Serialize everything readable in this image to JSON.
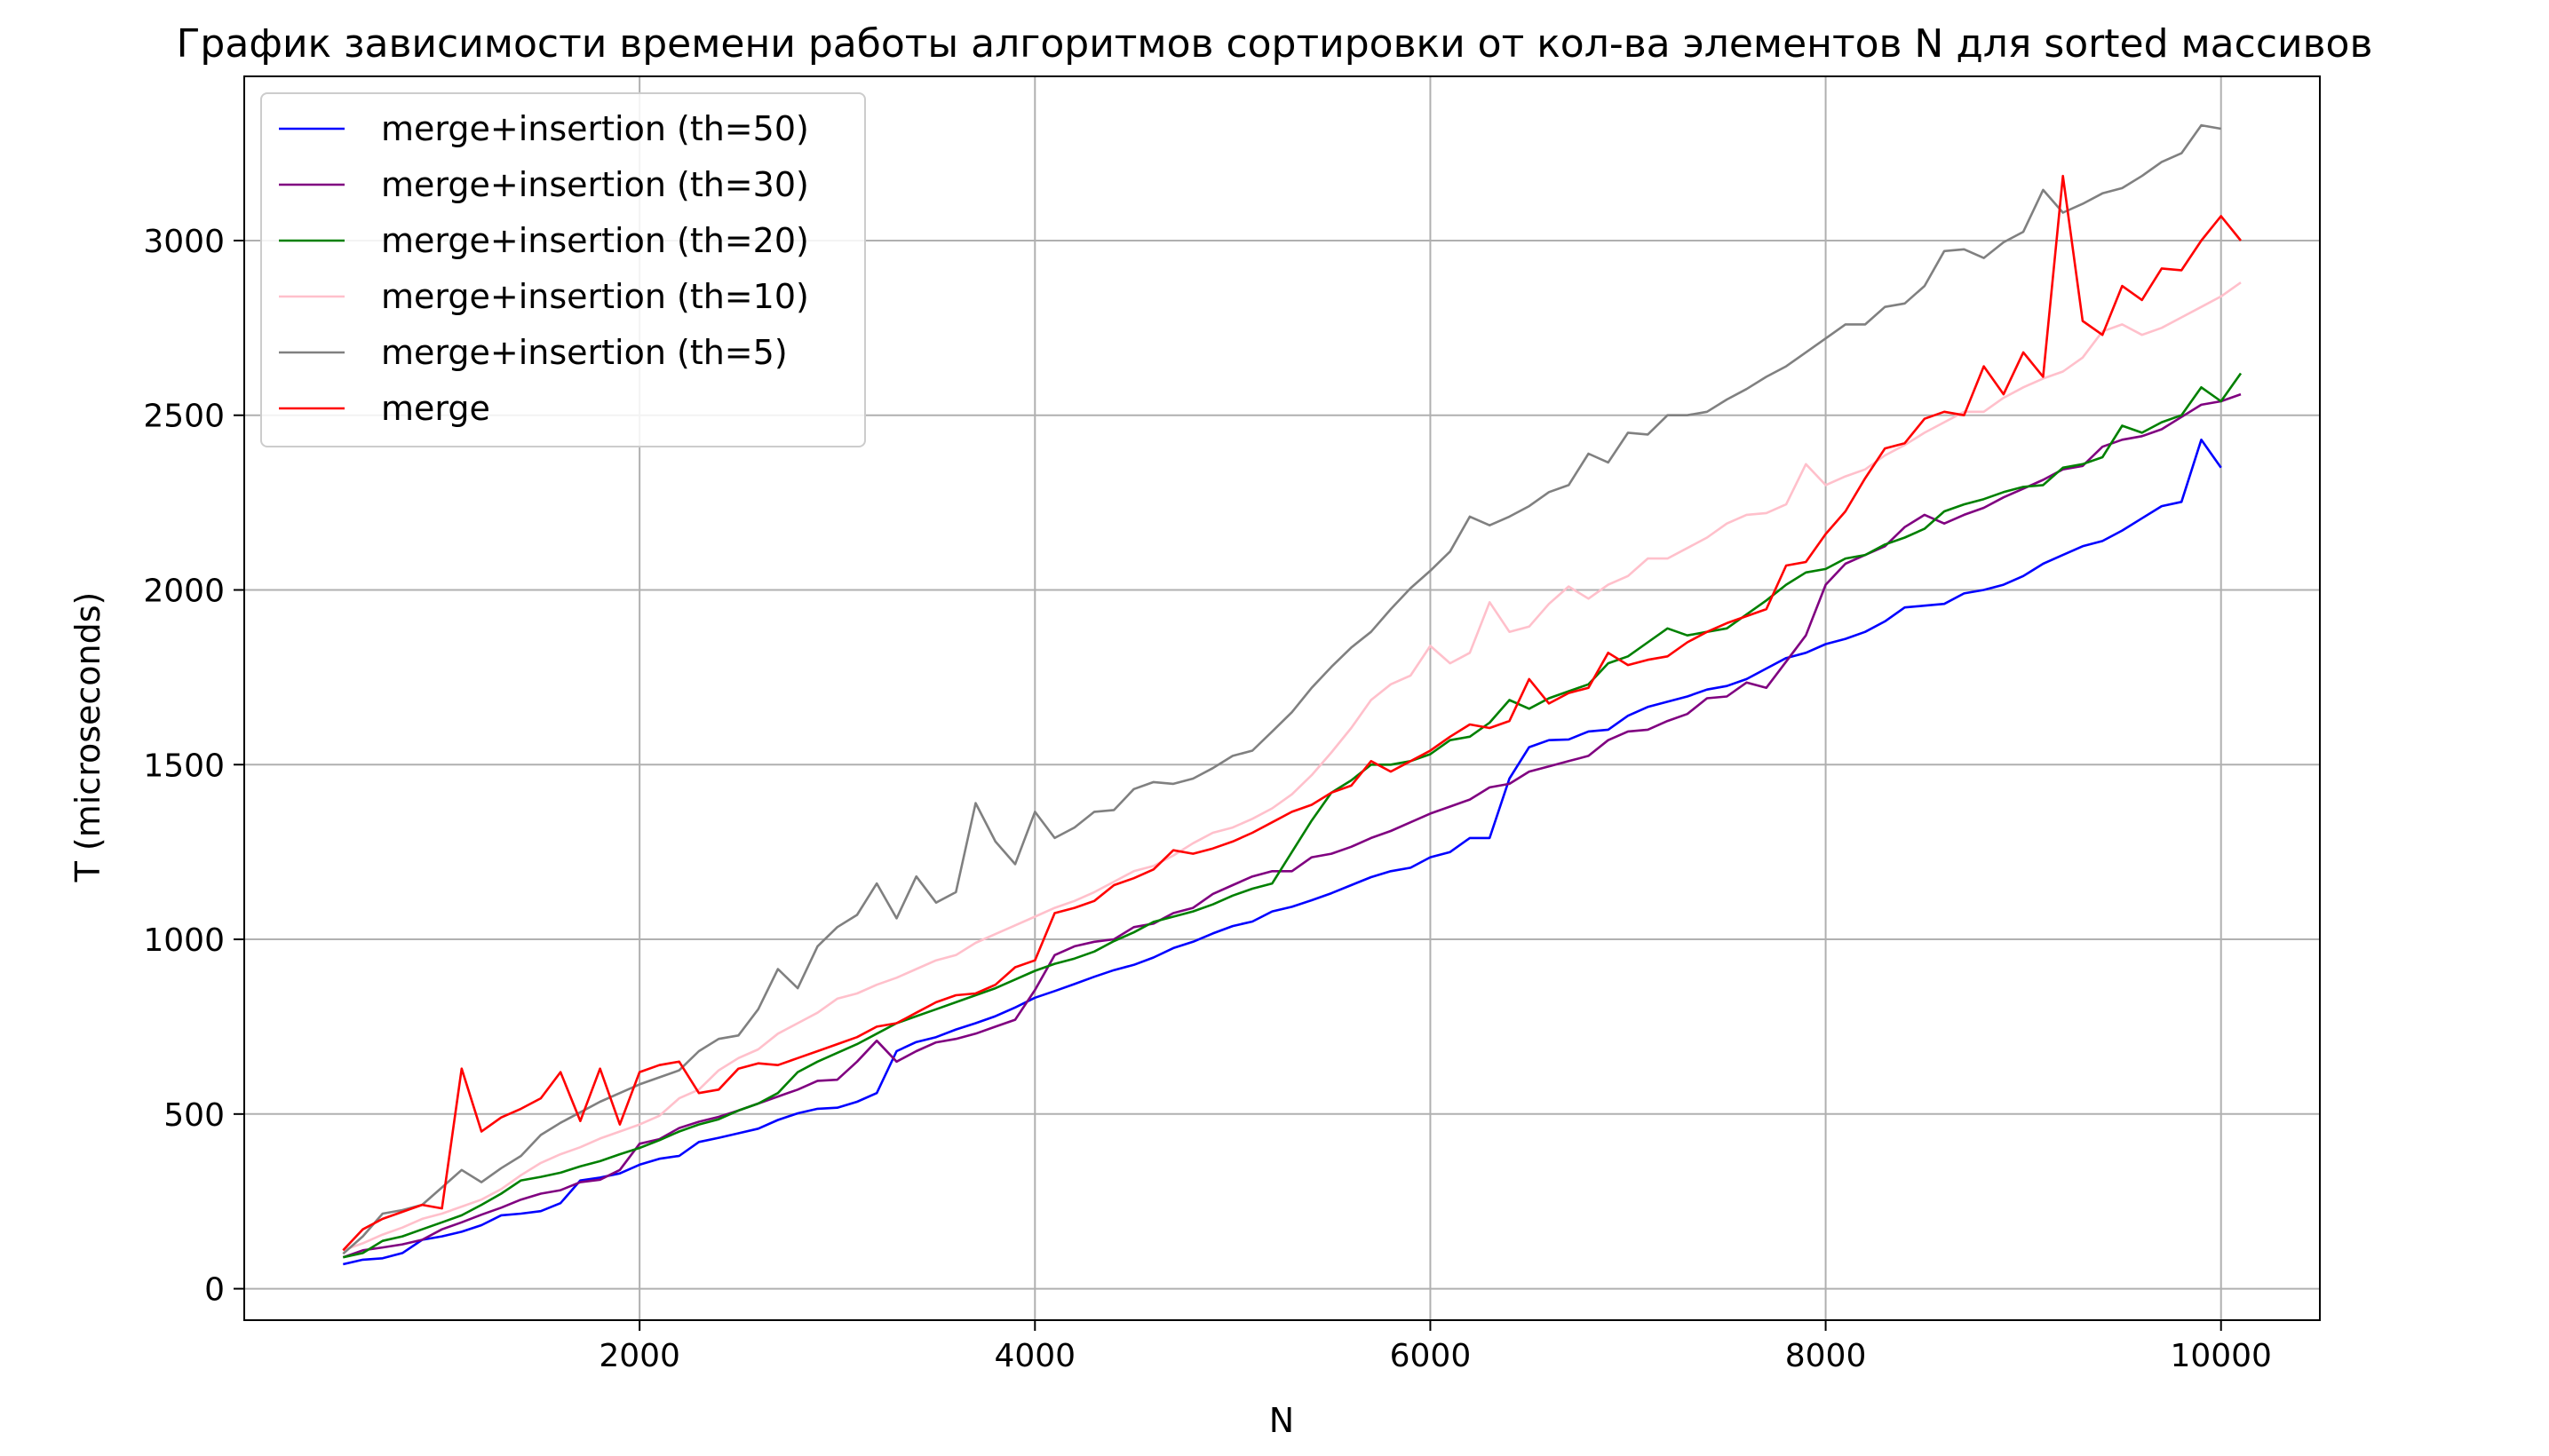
{
  "chart_data": {
    "type": "line",
    "title": "График зависимости времени работы алгоритмов сортировки от кол-ва элементов N для sorted массивов",
    "xlabel": "N",
    "ylabel": "T (microseconds)",
    "xlim": [
      0,
      10500
    ],
    "ylim": [
      -90,
      3470
    ],
    "xticks": [
      2000,
      4000,
      6000,
      8000,
      10000
    ],
    "yticks": [
      0,
      500,
      1000,
      1500,
      2000,
      2500,
      3000
    ],
    "grid": true,
    "legend_position": "top-left",
    "x_start": 500,
    "x_step": 100,
    "series": [
      {
        "name": "merge+insertion (th=50)",
        "color": "#0000ff",
        "values": [
          70,
          83,
          87,
          102,
          140,
          150,
          163,
          182,
          210,
          215,
          222,
          245,
          310,
          318,
          330,
          355,
          372,
          380,
          420,
          432,
          445,
          458,
          483,
          502,
          515,
          518,
          535,
          560,
          680,
          706,
          720,
          742,
          760,
          780,
          805,
          833,
          852,
          872,
          893,
          912,
          927,
          948,
          975,
          993,
          1017,
          1038,
          1051,
          1080,
          1093,
          1112,
          1132,
          1155,
          1178,
          1195,
          1205,
          1235,
          1250,
          1290,
          1290,
          1460,
          1550,
          1570,
          1572,
          1595,
          1600,
          1640,
          1665,
          1680,
          1695,
          1715,
          1725,
          1745,
          1775,
          1805,
          1820,
          1845,
          1860,
          1880,
          1910,
          1950,
          1955,
          1960,
          1990,
          2000,
          2015,
          2040,
          2075,
          2100,
          2125,
          2140,
          2170,
          2205,
          2240,
          2252,
          2430,
          2350
        ]
      },
      {
        "name": "merge+insertion (th=30)",
        "color": "#800080",
        "values": [
          90,
          110,
          118,
          127,
          140,
          170,
          190,
          212,
          232,
          255,
          272,
          282,
          305,
          312,
          340,
          415,
          428,
          460,
          478,
          492,
          510,
          530,
          550,
          570,
          595,
          598,
          650,
          710,
          650,
          680,
          705,
          715,
          730,
          750,
          770,
          855,
          955,
          980,
          993,
          1000,
          1035,
          1045,
          1075,
          1090,
          1130,
          1155,
          1180,
          1195,
          1195,
          1235,
          1245,
          1265,
          1290,
          1310,
          1335,
          1360,
          1380,
          1400,
          1435,
          1445,
          1480,
          1495,
          1510,
          1525,
          1570,
          1595,
          1600,
          1625,
          1645,
          1690,
          1695,
          1735,
          1720,
          1795,
          1870,
          2015,
          2075,
          2100,
          2125,
          2180,
          2215,
          2190,
          2215,
          2235,
          2265,
          2290,
          2315,
          2345,
          2355,
          2410,
          2430,
          2440,
          2460,
          2495,
          2530,
          2540,
          2560
        ]
      },
      {
        "name": "merge+insertion (th=20)",
        "color": "#008000",
        "values": [
          90,
          102,
          137,
          150,
          170,
          190,
          210,
          240,
          272,
          310,
          320,
          332,
          350,
          365,
          385,
          403,
          425,
          450,
          470,
          485,
          510,
          530,
          560,
          620,
          650,
          675,
          700,
          730,
          760,
          780,
          800,
          820,
          840,
          860,
          885,
          910,
          930,
          945,
          965,
          995,
          1020,
          1050,
          1065,
          1080,
          1100,
          1125,
          1145,
          1160,
          1250,
          1340,
          1420,
          1455,
          1500,
          1500,
          1510,
          1530,
          1570,
          1580,
          1620,
          1685,
          1660,
          1690,
          1710,
          1730,
          1790,
          1810,
          1850,
          1890,
          1870,
          1880,
          1890,
          1930,
          1970,
          2015,
          2050,
          2060,
          2090,
          2100,
          2130,
          2150,
          2175,
          2225,
          2245,
          2260,
          2280,
          2295,
          2300,
          2350,
          2360,
          2380,
          2470,
          2450,
          2480,
          2500,
          2580,
          2540,
          2620
        ]
      },
      {
        "name": "merge+insertion (th=10)",
        "color": "#ffc0cb",
        "values": [
          110,
          130,
          155,
          175,
          200,
          215,
          235,
          255,
          285,
          325,
          360,
          385,
          405,
          430,
          450,
          470,
          495,
          545,
          570,
          625,
          660,
          685,
          730,
          760,
          790,
          830,
          845,
          870,
          890,
          915,
          940,
          955,
          990,
          1015,
          1040,
          1065,
          1090,
          1110,
          1135,
          1165,
          1195,
          1210,
          1240,
          1275,
          1305,
          1320,
          1345,
          1375,
          1415,
          1470,
          1535,
          1605,
          1685,
          1730,
          1755,
          1840,
          1790,
          1820,
          1965,
          1880,
          1895,
          1960,
          2010,
          1975,
          2015,
          2040,
          2090,
          2090,
          2120,
          2150,
          2190,
          2215,
          2220,
          2245,
          2360,
          2300,
          2325,
          2345,
          2385,
          2415,
          2450,
          2480,
          2510,
          2510,
          2550,
          2580,
          2605,
          2625,
          2665,
          2740,
          2760,
          2730,
          2750,
          2780,
          2810,
          2840,
          2880
        ]
      },
      {
        "name": "merge+insertion (th=5)",
        "color": "#808080",
        "values": [
          100,
          150,
          215,
          225,
          240,
          290,
          340,
          305,
          345,
          380,
          440,
          475,
          505,
          535,
          560,
          585,
          605,
          625,
          680,
          715,
          725,
          800,
          915,
          860,
          980,
          1035,
          1070,
          1160,
          1060,
          1180,
          1105,
          1135,
          1390,
          1280,
          1215,
          1365,
          1290,
          1320,
          1365,
          1370,
          1430,
          1450,
          1445,
          1460,
          1490,
          1525,
          1540,
          1595,
          1650,
          1720,
          1780,
          1835,
          1880,
          1945,
          2005,
          2055,
          2110,
          2210,
          2185,
          2210,
          2240,
          2280,
          2300,
          2390,
          2365,
          2450,
          2445,
          2500,
          2500,
          2510,
          2545,
          2575,
          2610,
          2640,
          2680,
          2720,
          2760,
          2760,
          2810,
          2820,
          2870,
          2970,
          2975,
          2950,
          2995,
          3025,
          3145,
          3080,
          3105,
          3135,
          3150,
          3185,
          3225,
          3250,
          3330,
          3320
        ]
      },
      {
        "name": "merge",
        "color": "#ff0000",
        "values": [
          110,
          170,
          200,
          220,
          240,
          230,
          630,
          450,
          490,
          515,
          545,
          620,
          480,
          630,
          470,
          620,
          640,
          650,
          560,
          570,
          630,
          645,
          640,
          660,
          680,
          700,
          720,
          750,
          760,
          790,
          820,
          840,
          845,
          870,
          920,
          940,
          1075,
          1090,
          1110,
          1155,
          1175,
          1200,
          1255,
          1245,
          1260,
          1280,
          1305,
          1335,
          1365,
          1385,
          1420,
          1440,
          1510,
          1480,
          1510,
          1540,
          1580,
          1615,
          1605,
          1625,
          1745,
          1675,
          1705,
          1720,
          1820,
          1785,
          1800,
          1810,
          1850,
          1880,
          1905,
          1925,
          1945,
          2070,
          2080,
          2160,
          2225,
          2320,
          2405,
          2420,
          2490,
          2510,
          2500,
          2640,
          2560,
          2680,
          2610,
          3185,
          2770,
          2730,
          2870,
          2830,
          2920,
          2915,
          3000,
          3070,
          3000
        ]
      }
    ]
  }
}
